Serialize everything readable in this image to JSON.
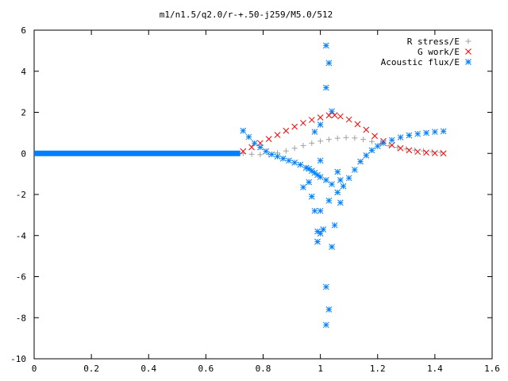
{
  "chart_data": {
    "type": "scatter",
    "title": "m1/n1.5/q2.0/r-+.50-j259/M5.0/512",
    "xlabel": "",
    "ylabel": "",
    "xlim": [
      0,
      1.6
    ],
    "ylim": [
      -10,
      6
    ],
    "x_ticks": [
      "0",
      "0.2",
      "0.4",
      "0.6",
      "0.8",
      "1",
      "1.2",
      "1.4",
      "1.6"
    ],
    "y_ticks": [
      "6",
      "4",
      "2",
      "0",
      "-2",
      "-4",
      "-6",
      "-8",
      "-10"
    ],
    "grid": false,
    "legend_position": "top-right",
    "series": [
      {
        "name": "R stress/E",
        "marker": "plus",
        "color": "#a0a0a0",
        "points": [
          [
            0.73,
            0.0
          ],
          [
            0.76,
            -0.04
          ],
          [
            0.79,
            -0.06
          ],
          [
            0.82,
            -0.05
          ],
          [
            0.85,
            0.02
          ],
          [
            0.88,
            0.12
          ],
          [
            0.91,
            0.25
          ],
          [
            0.94,
            0.38
          ],
          [
            0.97,
            0.5
          ],
          [
            1.0,
            0.6
          ],
          [
            1.03,
            0.68
          ],
          [
            1.06,
            0.74
          ],
          [
            1.09,
            0.77
          ],
          [
            1.12,
            0.75
          ],
          [
            1.15,
            0.68
          ],
          [
            1.18,
            0.58
          ],
          [
            1.21,
            0.47
          ],
          [
            1.24,
            0.37
          ],
          [
            1.27,
            0.29
          ],
          [
            1.3,
            0.22
          ],
          [
            1.33,
            0.16
          ],
          [
            1.36,
            0.12
          ],
          [
            1.39,
            0.08
          ],
          [
            1.42,
            0.05
          ]
        ]
      },
      {
        "name": "G work/E",
        "marker": "cross",
        "color": "#ff0000",
        "points": [
          [
            0.73,
            0.1
          ],
          [
            0.76,
            0.3
          ],
          [
            0.79,
            0.5
          ],
          [
            0.82,
            0.7
          ],
          [
            0.85,
            0.9
          ],
          [
            0.88,
            1.1
          ],
          [
            0.91,
            1.3
          ],
          [
            0.94,
            1.48
          ],
          [
            0.97,
            1.63
          ],
          [
            1.0,
            1.75
          ],
          [
            1.03,
            1.85
          ],
          [
            1.05,
            1.86
          ],
          [
            1.07,
            1.8
          ],
          [
            1.1,
            1.65
          ],
          [
            1.13,
            1.42
          ],
          [
            1.16,
            1.15
          ],
          [
            1.19,
            0.85
          ],
          [
            1.22,
            0.6
          ],
          [
            1.25,
            0.4
          ],
          [
            1.28,
            0.25
          ],
          [
            1.31,
            0.15
          ],
          [
            1.34,
            0.08
          ],
          [
            1.37,
            0.04
          ],
          [
            1.4,
            0.01
          ],
          [
            1.43,
            0.0
          ]
        ]
      },
      {
        "name": "Acoustic flux/E",
        "marker": "star",
        "color": "#0080ff",
        "baseline_x": [
          0.0,
          0.72
        ],
        "baseline_y": 0,
        "points": [
          [
            0.73,
            1.1
          ],
          [
            0.75,
            0.8
          ],
          [
            0.77,
            0.5
          ],
          [
            0.79,
            0.3
          ],
          [
            0.81,
            0.1
          ],
          [
            0.83,
            -0.05
          ],
          [
            0.85,
            -0.15
          ],
          [
            0.87,
            -0.25
          ],
          [
            0.89,
            -0.35
          ],
          [
            0.91,
            -0.45
          ],
          [
            0.93,
            -0.55
          ],
          [
            0.95,
            -0.7
          ],
          [
            0.96,
            -0.75
          ],
          [
            0.97,
            -0.85
          ],
          [
            0.98,
            -0.95
          ],
          [
            0.99,
            -1.05
          ],
          [
            1.0,
            -1.15
          ],
          [
            1.02,
            -1.3
          ],
          [
            1.04,
            -1.5
          ],
          [
            1.06,
            -1.9
          ],
          [
            1.08,
            -1.6
          ],
          [
            1.1,
            -1.2
          ],
          [
            1.12,
            -0.8
          ],
          [
            1.14,
            -0.4
          ],
          [
            1.16,
            -0.1
          ],
          [
            1.18,
            0.15
          ],
          [
            1.2,
            0.35
          ],
          [
            1.22,
            0.5
          ],
          [
            1.25,
            0.65
          ],
          [
            1.28,
            0.78
          ],
          [
            1.31,
            0.88
          ],
          [
            1.34,
            0.95
          ],
          [
            1.37,
            1.0
          ],
          [
            1.4,
            1.05
          ],
          [
            1.43,
            1.08
          ],
          [
            1.02,
            5.25
          ],
          [
            1.03,
            4.4
          ],
          [
            1.02,
            3.2
          ],
          [
            1.04,
            2.05
          ],
          [
            1.0,
            1.4
          ],
          [
            0.98,
            1.05
          ],
          [
            1.0,
            -0.35
          ],
          [
            0.96,
            -1.4
          ],
          [
            0.94,
            -1.65
          ],
          [
            0.97,
            -2.1
          ],
          [
            0.98,
            -2.8
          ],
          [
            1.0,
            -2.8
          ],
          [
            0.99,
            -3.8
          ],
          [
            1.0,
            -3.9
          ],
          [
            1.01,
            -3.7
          ],
          [
            0.99,
            -4.3
          ],
          [
            1.04,
            -4.55
          ],
          [
            1.05,
            -3.5
          ],
          [
            1.07,
            -2.4
          ],
          [
            1.03,
            -2.3
          ],
          [
            1.02,
            -6.5
          ],
          [
            1.03,
            -7.6
          ],
          [
            1.02,
            -8.35
          ],
          [
            1.06,
            -0.9
          ],
          [
            1.07,
            -1.3
          ]
        ]
      }
    ]
  }
}
